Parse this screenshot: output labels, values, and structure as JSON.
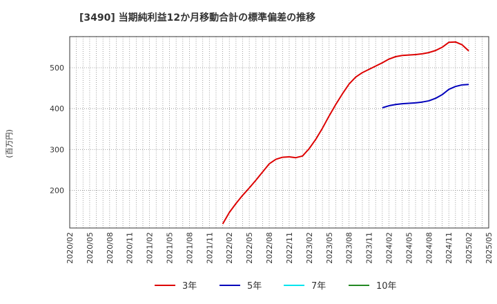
{
  "chart_data": {
    "type": "line",
    "title": "[3490]  当期純利益12か月移動合計の標準偏差の推移",
    "ylabel": "(百万円)",
    "xlabel": "",
    "ylim": [
      108,
      576
    ],
    "yticks": [
      200,
      300,
      400,
      500
    ],
    "xticks": [
      "2020/02",
      "2020/05",
      "2020/08",
      "2020/11",
      "2021/02",
      "2021/05",
      "2021/08",
      "2021/11",
      "2022/02",
      "2022/05",
      "2022/08",
      "2022/11",
      "2023/02",
      "2023/05",
      "2023/08",
      "2023/11",
      "2024/02",
      "2024/05",
      "2024/08",
      "2024/11",
      "2025/02",
      "2025/05"
    ],
    "grid": true,
    "legend_position": "bottom",
    "series": [
      {
        "name": "3年",
        "color": "#dd0000",
        "x": [
          "2022/01",
          "2022/02",
          "2022/03",
          "2022/04",
          "2022/05",
          "2022/06",
          "2022/07",
          "2022/08",
          "2022/09",
          "2022/10",
          "2022/11",
          "2022/12",
          "2023/01",
          "2023/02",
          "2023/03",
          "2023/04",
          "2023/05",
          "2023/06",
          "2023/07",
          "2023/08",
          "2023/09",
          "2023/10",
          "2023/11",
          "2023/12",
          "2024/01",
          "2024/02",
          "2024/03",
          "2024/04",
          "2024/05",
          "2024/06",
          "2024/07",
          "2024/08",
          "2024/09",
          "2024/10",
          "2024/11",
          "2024/12",
          "2025/01",
          "2025/02"
        ],
        "values": [
          118,
          146,
          168,
          188,
          206,
          225,
          245,
          265,
          276,
          281,
          282,
          280,
          284,
          302,
          325,
          352,
          382,
          410,
          436,
          460,
          477,
          488,
          496,
          504,
          512,
          521,
          527,
          530,
          531,
          532,
          534,
          537,
          542,
          550,
          562,
          563,
          556,
          541
        ]
      },
      {
        "name": "5年",
        "color": "#0000bb",
        "x": [
          "2024/01",
          "2024/02",
          "2024/03",
          "2024/04",
          "2024/05",
          "2024/06",
          "2024/07",
          "2024/08",
          "2024/09",
          "2024/10",
          "2024/11",
          "2024/12",
          "2025/01",
          "2025/02"
        ],
        "values": [
          402,
          407,
          410,
          412,
          413,
          414,
          416,
          419,
          425,
          434,
          447,
          454,
          458,
          459
        ]
      },
      {
        "name": "7年",
        "color": "#00e5ee",
        "x": [],
        "values": []
      },
      {
        "name": "10年",
        "color": "#228822",
        "x": [],
        "values": []
      }
    ]
  }
}
